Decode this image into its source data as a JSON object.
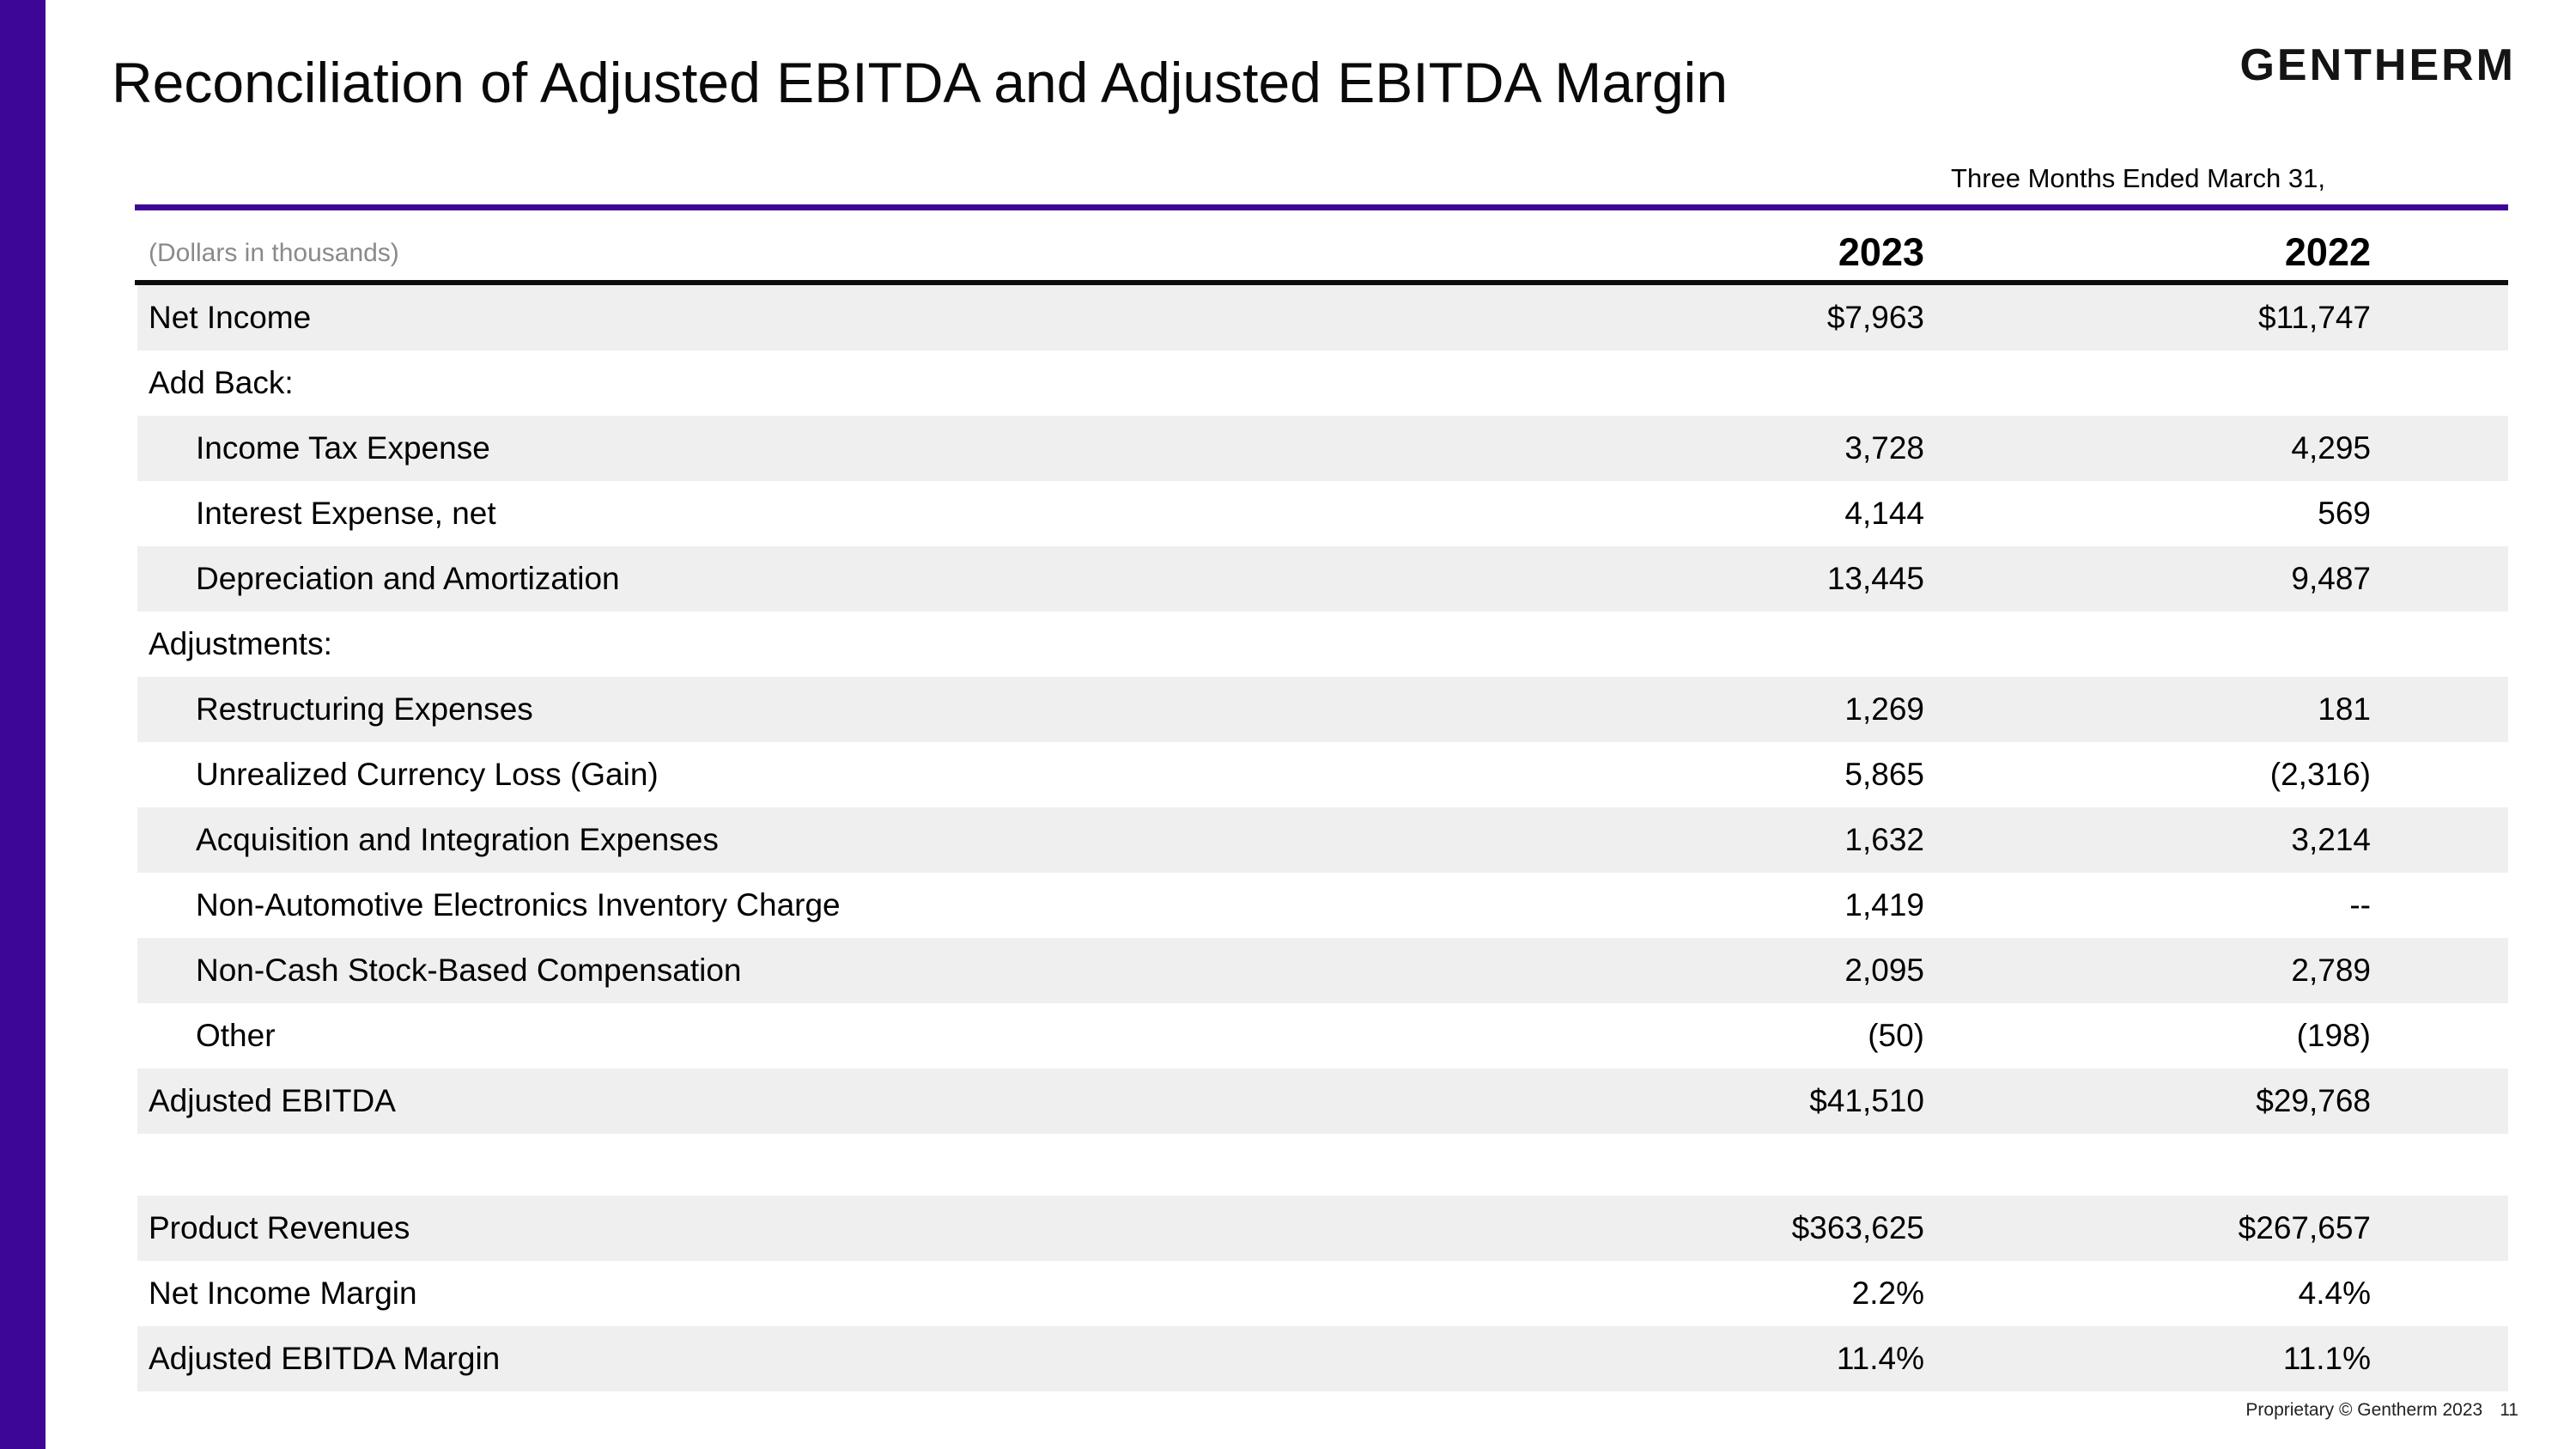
{
  "slide": {
    "title": "Reconciliation of Adjusted EBITDA and Adjusted EBITDA Margin",
    "logo": "GENTHERM",
    "period_header": "Three Months Ended March 31,",
    "units_note": "(Dollars in thousands)",
    "columns": [
      "2023",
      "2022"
    ],
    "footer": {
      "text": "Proprietary © Gentherm 2023",
      "page": "11"
    },
    "colors": {
      "accent_purple": "#3D0696",
      "stripe_gray": "#efefef",
      "rule_black": "#0d0d0d",
      "units_gray": "#8a8a8a"
    }
  },
  "table": {
    "rows": [
      {
        "label": "Net Income",
        "v2023": "$7,963",
        "v2022": "$11,747"
      },
      {
        "label": "Add Back:",
        "v2023": "",
        "v2022": ""
      },
      {
        "label": "Income Tax Expense",
        "v2023": "3,728",
        "v2022": "4,295"
      },
      {
        "label": "Interest Expense, net",
        "v2023": "4,144",
        "v2022": "569"
      },
      {
        "label": "Depreciation and Amortization",
        "v2023": "13,445",
        "v2022": "9,487"
      },
      {
        "label": "Adjustments:",
        "v2023": "",
        "v2022": ""
      },
      {
        "label": "Restructuring Expenses",
        "v2023": "1,269",
        "v2022": "181"
      },
      {
        "label": "Unrealized Currency Loss (Gain)",
        "v2023": "5,865",
        "v2022": "(2,316)"
      },
      {
        "label": "Acquisition and Integration Expenses",
        "v2023": "1,632",
        "v2022": "3,214"
      },
      {
        "label": "Non-Automotive Electronics Inventory Charge",
        "v2023": "1,419",
        "v2022": "--"
      },
      {
        "label": "Non-Cash Stock-Based Compensation",
        "v2023": "2,095",
        "v2022": "2,789"
      },
      {
        "label": "Other",
        "v2023": "(50)",
        "v2022": "(198)"
      },
      {
        "label": "Adjusted EBITDA",
        "v2023": "$41,510",
        "v2022": "$29,768"
      },
      {
        "label": "Product Revenues",
        "v2023": "$363,625",
        "v2022": "$267,657"
      },
      {
        "label": "Net Income Margin",
        "v2023": "2.2%",
        "v2022": "4.4%"
      },
      {
        "label": "Adjusted EBITDA Margin",
        "v2023": "11.4%",
        "v2022": "11.1%"
      }
    ]
  }
}
